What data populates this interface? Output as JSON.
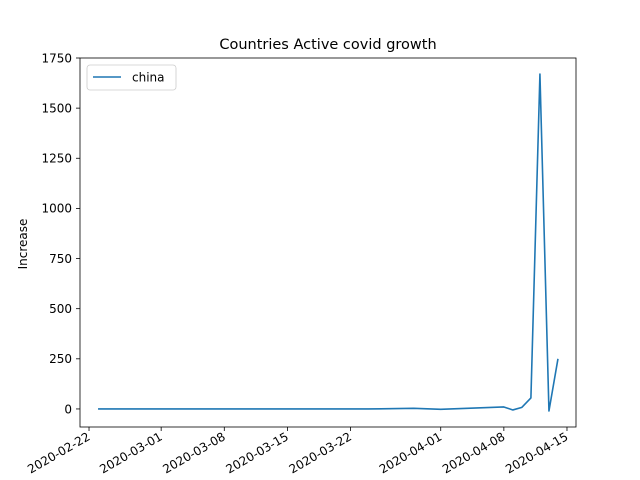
{
  "chart_data": {
    "type": "line",
    "title": "Countries Active covid growth",
    "xlabel": "",
    "ylabel": "Increase",
    "ylim": [
      -90,
      1750
    ],
    "y_ticks": [
      0,
      250,
      500,
      750,
      1000,
      1250,
      1500,
      1750
    ],
    "y_tick_labels": [
      "0",
      "250",
      "500",
      "750",
      "1000",
      "1250",
      "1500",
      "1750"
    ],
    "xlim": [
      "2020-02-21",
      "2020-04-16"
    ],
    "x_ticks": [
      "2020-02-22",
      "2020-03-01",
      "2020-03-08",
      "2020-03-15",
      "2020-03-22",
      "2020-04-01",
      "2020-04-08",
      "2020-04-15"
    ],
    "grid": false,
    "legend_position": "top-left",
    "series": [
      {
        "name": "china",
        "color": "#1f77b4",
        "points": [
          {
            "date": "2020-02-23",
            "value": 0
          },
          {
            "date": "2020-03-24",
            "value": 0
          },
          {
            "date": "2020-03-29",
            "value": 3
          },
          {
            "date": "2020-04-01",
            "value": -2
          },
          {
            "date": "2020-04-08",
            "value": 10
          },
          {
            "date": "2020-04-09",
            "value": -5
          },
          {
            "date": "2020-04-10",
            "value": 8
          },
          {
            "date": "2020-04-11",
            "value": 55
          },
          {
            "date": "2020-04-12",
            "value": 1670
          },
          {
            "date": "2020-04-13",
            "value": -10
          },
          {
            "date": "2020-04-14",
            "value": 250
          }
        ]
      }
    ]
  }
}
